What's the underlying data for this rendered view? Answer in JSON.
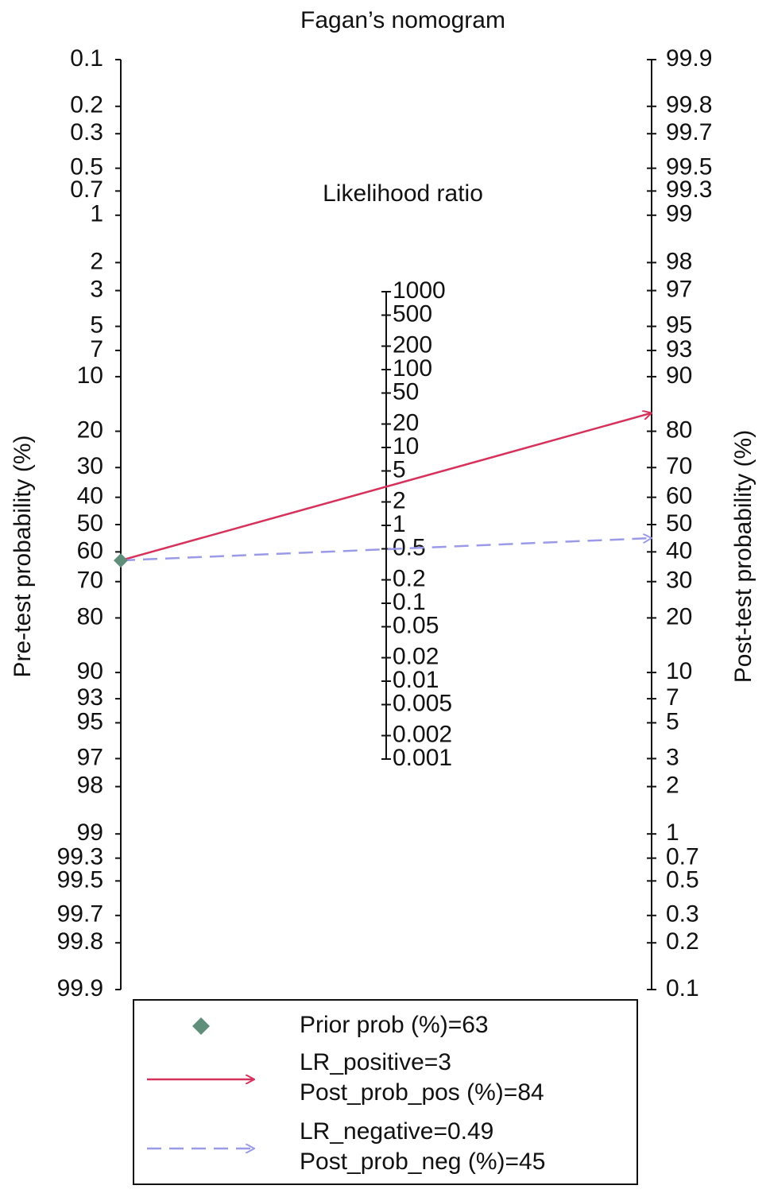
{
  "chart_data": {
    "type": "fagan",
    "title": "Fagan’s nomogram",
    "left_axis_label": "Pre-test probability (%)",
    "right_axis_label": "Post-test probability (%)",
    "middle_axis_label": "Likelihood ratio",
    "left_ticks": [
      0.1,
      0.2,
      0.3,
      0.5,
      0.7,
      1,
      2,
      3,
      5,
      7,
      10,
      20,
      30,
      40,
      50,
      60,
      70,
      80,
      90,
      93,
      95,
      97,
      98,
      99,
      99.3,
      99.5,
      99.7,
      99.8,
      99.9
    ],
    "right_ticks": [
      99.9,
      99.8,
      99.7,
      99.5,
      99.3,
      99,
      98,
      97,
      95,
      93,
      90,
      80,
      70,
      60,
      50,
      40,
      30,
      20,
      10,
      7,
      5,
      3,
      2,
      1,
      0.7,
      0.5,
      0.3,
      0.2,
      0.1
    ],
    "middle_ticks": [
      1000,
      500,
      200,
      100,
      50,
      20,
      10,
      5,
      2,
      1,
      0.5,
      0.2,
      0.1,
      0.05,
      0.02,
      0.01,
      0.005,
      0.002,
      0.001
    ],
    "prior": 63,
    "prior_color": "#5f8f7a",
    "series": [
      {
        "lr": 3,
        "post": 84,
        "color": "#d6315a",
        "dashed": false
      },
      {
        "lr": 0.49,
        "post": 45,
        "color": "#9a9ae8",
        "dashed": true
      }
    ],
    "legend": [
      [
        "Prior prob (%)=63"
      ],
      [
        "LR_positive=3",
        "Post_prob_pos (%)=84"
      ],
      [
        "LR_negative=0.49",
        "Post_prob_neg (%)=45"
      ]
    ]
  }
}
